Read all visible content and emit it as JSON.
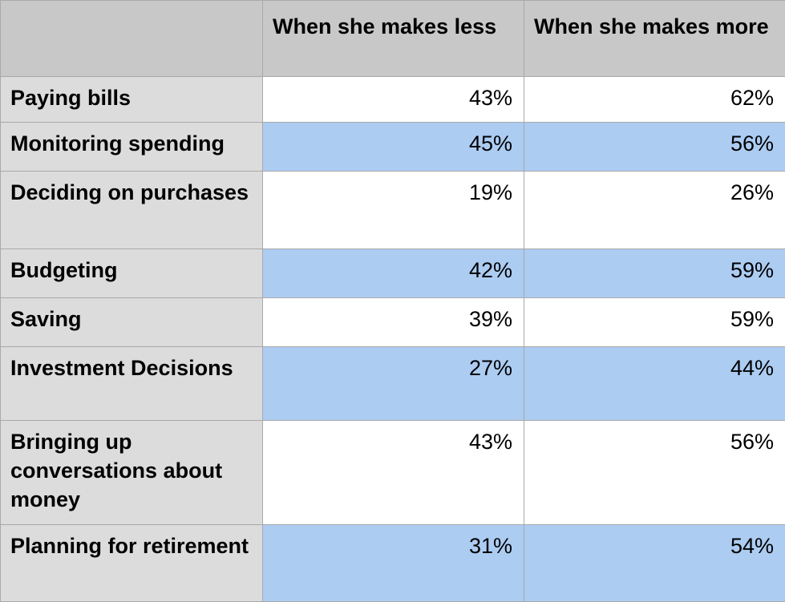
{
  "chart_data": {
    "type": "table",
    "columns": [
      "",
      "When she makes less",
      "When she makes more"
    ],
    "rows": [
      {
        "label": "Paying bills",
        "values": [
          "43%",
          "62%"
        ]
      },
      {
        "label": "Monitoring spending",
        "values": [
          "45%",
          "56%"
        ]
      },
      {
        "label": "Deciding on purchases",
        "values": [
          "19%",
          "26%"
        ]
      },
      {
        "label": "Budgeting",
        "values": [
          "42%",
          "59%"
        ]
      },
      {
        "label": "Saving",
        "values": [
          "39%",
          "59%"
        ]
      },
      {
        "label": "Investment Decisions",
        "values": [
          "27%",
          "44%"
        ]
      },
      {
        "label": "Bringing up conversations about money",
        "values": [
          "43%",
          "56%"
        ]
      },
      {
        "label": "Planning for retirement",
        "values": [
          "31%",
          "54%"
        ]
      }
    ],
    "colors": {
      "header": "#c7c8c7",
      "row_label": "#dcdcdc",
      "shaded": "#acccf2",
      "plain": "#ffffff"
    }
  }
}
